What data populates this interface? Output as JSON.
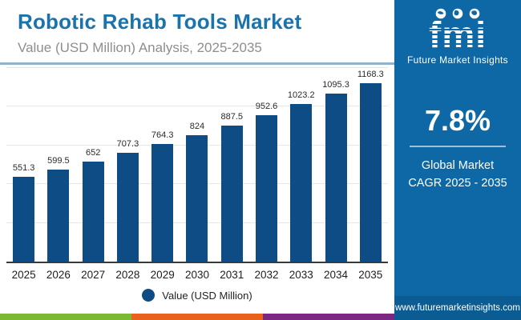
{
  "header": {
    "title": "Robotic Rehab Tools Market",
    "subtitle": "Value (USD Million) Analysis, 2025-2035"
  },
  "chart_data": {
    "type": "bar",
    "categories": [
      "2025",
      "2026",
      "2027",
      "2028",
      "2029",
      "2030",
      "2031",
      "2032",
      "2033",
      "2034",
      "2035"
    ],
    "values": [
      551.3,
      599.5,
      652,
      707.3,
      764.3,
      824,
      887.5,
      952.6,
      1023.2,
      1095.3,
      1168.3
    ],
    "title": "Robotic Rehab Tools Market",
    "xlabel": "",
    "ylabel": "Value (USD Million)",
    "ylim": [
      0,
      1260
    ],
    "grid": true,
    "gridline_count": 5,
    "bar_color": "#0d4c84",
    "legend": [
      {
        "label": "Value (USD Million)",
        "color": "#0d4c84"
      }
    ],
    "legend_position": "bottom"
  },
  "sidebar": {
    "logo": {
      "text": "fmi",
      "icons": [
        "globe-icon",
        "globe-icon",
        "globe-icon"
      ],
      "tagline": "Future Market Insights"
    },
    "stat": {
      "value": "7.8%",
      "label_line1": "Global Market",
      "label_line2": "CAGR 2025 - 2035"
    },
    "website": "www.futuremarketinsights.com"
  },
  "colors": {
    "title": "#1a73ad",
    "subtitle": "#8e8e8e",
    "bar": "#0d4c84",
    "sidebar_bg": "#0e68a6",
    "sidebar_footer_bg": "#0c5c94",
    "strip_green": "#7cb832",
    "strip_orange": "#e8621c",
    "strip_purple": "#7c2882",
    "header_rule": "#8fb3cd"
  }
}
